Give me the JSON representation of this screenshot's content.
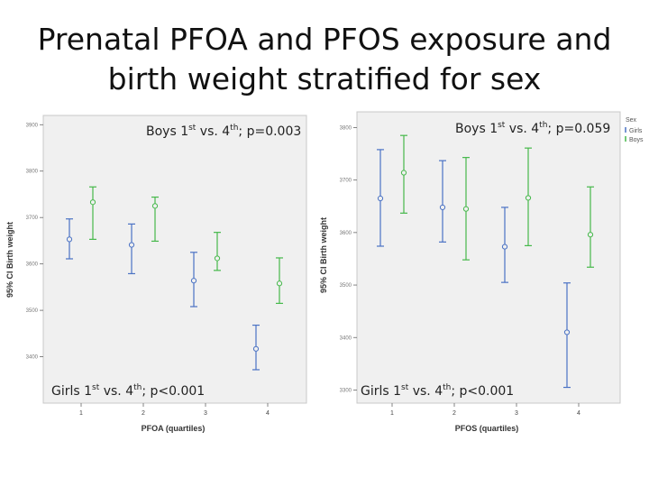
{
  "slide": {
    "title_line1": "Prenatal PFOA and PFOS exposure and",
    "title_line2": "birth weight stratified for sex"
  },
  "legend": {
    "title": "Sex",
    "items": [
      {
        "label": "Girls",
        "color": "#4a72c4"
      },
      {
        "label": "Boys",
        "color": "#45b84a"
      }
    ]
  },
  "chart_data": [
    {
      "type": "errorbar",
      "xlabel": "PFOA (quartiles)",
      "ylabel": "95% CI Birth weight",
      "x_ticks": [
        "1",
        "2",
        "3",
        "4"
      ],
      "y_ticks": [
        3400,
        3500,
        3600,
        3700,
        3800,
        3900
      ],
      "y_tick_labels": [
        "3400",
        "3500",
        "3600",
        "3700",
        "3800",
        "3900"
      ],
      "ylim": [
        3300,
        3920
      ],
      "annotations": {
        "boys_sup1": "st",
        "boys_mid": " vs. 4",
        "boys_sup2": "th",
        "boys_end": "; p=0.003",
        "boys_pre": "Boys 1",
        "girls_pre": "Girls 1",
        "girls_sup1": "st",
        "girls_mid": " vs. 4",
        "girls_sup2": "th",
        "girls_end": "; p<0.001"
      },
      "series": [
        {
          "name": "Girls",
          "color": "#4a72c4",
          "mean": [
            3653,
            3641,
            3564,
            3417
          ],
          "lower": [
            3611,
            3579,
            3508,
            3372
          ],
          "upper": [
            3697,
            3686,
            3625,
            3468
          ]
        },
        {
          "name": "Boys",
          "color": "#45b84a",
          "mean": [
            3733,
            3725,
            3612,
            3558
          ],
          "lower": [
            3653,
            3649,
            3586,
            3515
          ],
          "upper": [
            3766,
            3744,
            3668,
            3613
          ]
        }
      ]
    },
    {
      "type": "errorbar",
      "xlabel": "PFOS (quartiles)",
      "ylabel": "95% CI Birth weight",
      "x_ticks": [
        "1",
        "2",
        "3",
        "4"
      ],
      "y_ticks": [
        3300,
        3400,
        3500,
        3600,
        3700,
        3800
      ],
      "y_tick_labels": [
        "3300",
        "3400",
        "3500",
        "3600",
        "3700",
        "3800"
      ],
      "ylim": [
        3275,
        3830
      ],
      "annotations": {
        "boys_pre": "Boys 1",
        "boys_sup1": "st",
        "boys_mid": " vs. 4",
        "boys_sup2": "th",
        "boys_end": "; p=0.059",
        "girls_pre": "Girls 1",
        "girls_sup1": "st",
        "girls_mid": " vs. 4",
        "girls_sup2": "th",
        "girls_end": "; p<0.001"
      },
      "series": [
        {
          "name": "Girls",
          "color": "#4a72c4",
          "mean": [
            3665,
            3648,
            3573,
            3410
          ],
          "lower": [
            3574,
            3582,
            3505,
            3305
          ],
          "upper": [
            3758,
            3737,
            3648,
            3504
          ]
        },
        {
          "name": "Boys",
          "color": "#45b84a",
          "mean": [
            3714,
            3645,
            3666,
            3596
          ],
          "lower": [
            3637,
            3548,
            3575,
            3534
          ],
          "upper": [
            3785,
            3743,
            3761,
            3687
          ]
        }
      ]
    }
  ]
}
